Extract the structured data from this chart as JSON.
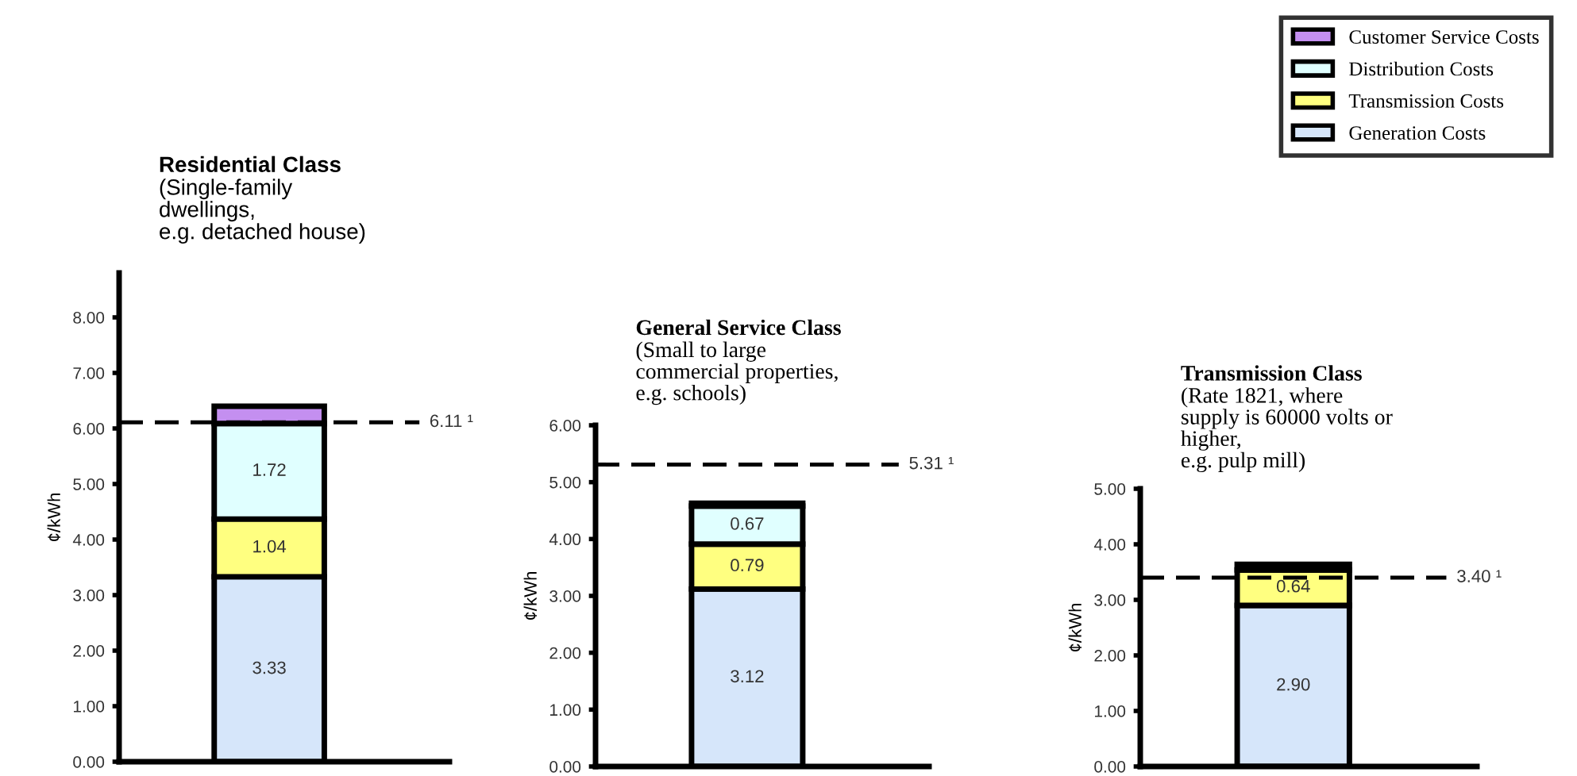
{
  "chart_data": [
    {
      "type": "bar",
      "stacked": true,
      "title": "Residential Class",
      "subtitle": "(Single-family\ndwellings,\ne.g. detached house)",
      "ylabel": "¢/kWh",
      "categories": [
        null
      ],
      "ylim": [
        0,
        8.8
      ],
      "yticks": [
        {
          "value": 0,
          "label": "0.00"
        },
        {
          "value": 1,
          "label": "1.00"
        },
        {
          "value": 2,
          "label": "2.00"
        },
        {
          "value": 3,
          "label": "3.00"
        },
        {
          "value": 4,
          "label": "4.00"
        },
        {
          "value": 5,
          "label": "5.00"
        },
        {
          "value": 6,
          "label": "6.00"
        },
        {
          "value": 7,
          "label": "7.00"
        },
        {
          "value": 8,
          "label": "8.00"
        }
      ],
      "series": [
        {
          "name": "Generation Costs",
          "color": "#d6e6fa",
          "values": [
            3.33
          ],
          "value_labels": [
            "3.33"
          ]
        },
        {
          "name": "Transmission Costs",
          "color": "#ffff80",
          "values": [
            1.04
          ],
          "value_labels": [
            "1.04"
          ]
        },
        {
          "name": "Distribution Costs",
          "color": "#e0ffff",
          "values": [
            1.72
          ],
          "value_labels": [
            "1.72"
          ]
        },
        {
          "name": "Customer Service Costs",
          "color": "#c48ff0",
          "values": [
            0.31
          ],
          "value_labels": [
            null
          ]
        }
      ],
      "ref_lines": [
        {
          "axis": "y",
          "value": 6.11,
          "label": "6.11 ¹",
          "line_style": "dashed"
        }
      ],
      "legend": "top right"
    },
    {
      "type": "bar",
      "stacked": true,
      "title": "General Service Class",
      "subtitle": "(Small to large\ncommercial properties,\ne.g. schools)",
      "ylabel": "¢/kWh",
      "categories": [
        null
      ],
      "ylim": [
        0,
        6
      ],
      "yticks": [
        {
          "value": 0,
          "label": "0.00"
        },
        {
          "value": 1,
          "label": "1.00"
        },
        {
          "value": 2,
          "label": "2.00"
        },
        {
          "value": 3,
          "label": "3.00"
        },
        {
          "value": 4,
          "label": "4.00"
        },
        {
          "value": 5,
          "label": "5.00"
        },
        {
          "value": 6,
          "label": "6.00"
        }
      ],
      "series": [
        {
          "color": "#d6e6fa",
          "values": [
            3.12
          ],
          "value_labels": [
            "3.12"
          ]
        },
        {
          "color": "#ffff80",
          "values": [
            0.79
          ],
          "value_labels": [
            "0.79"
          ]
        },
        {
          "color": "#e0ffff",
          "values": [
            0.67
          ],
          "value_labels": [
            "0.67"
          ]
        },
        {
          "color": "#c48ff0",
          "values": [
            0.05
          ],
          "value_labels": [
            null
          ]
        }
      ],
      "ref_lines": [
        {
          "axis": "y",
          "value": 5.31,
          "label": "5.31 ¹",
          "line_style": "dashed"
        }
      ]
    },
    {
      "type": "bar",
      "stacked": true,
      "title": "Transmission Class",
      "subtitle": "(Rate 1821, where\nsupply is 60000 volts or\nhigher,\ne.g. pulp mill)",
      "ylabel": "¢/kWh",
      "categories": [
        null
      ],
      "ylim": [
        0,
        5
      ],
      "yticks": [
        {
          "value": 0,
          "label": "0.00"
        },
        {
          "value": 1,
          "label": "1.00"
        },
        {
          "value": 2,
          "label": "2.00"
        },
        {
          "value": 3,
          "label": "3.00"
        },
        {
          "value": 4,
          "label": "4.00"
        },
        {
          "value": 5,
          "label": "5.00"
        }
      ],
      "series": [
        {
          "color": "#d6e6fa",
          "values": [
            2.9
          ],
          "value_labels": [
            "2.90"
          ]
        },
        {
          "color": "#ffff80",
          "values": [
            0.64
          ],
          "value_labels": [
            "0.64"
          ]
        },
        {
          "color": "#e0ffff",
          "values": [
            null
          ],
          "value_labels": [
            null
          ]
        },
        {
          "color": "#c48ff0",
          "values": [
            0.1
          ],
          "value_labels": [
            null
          ]
        }
      ],
      "ref_lines": [
        {
          "axis": "y",
          "value": 3.4,
          "label": "3.40 ¹",
          "line_style": "dashed"
        }
      ]
    }
  ]
}
